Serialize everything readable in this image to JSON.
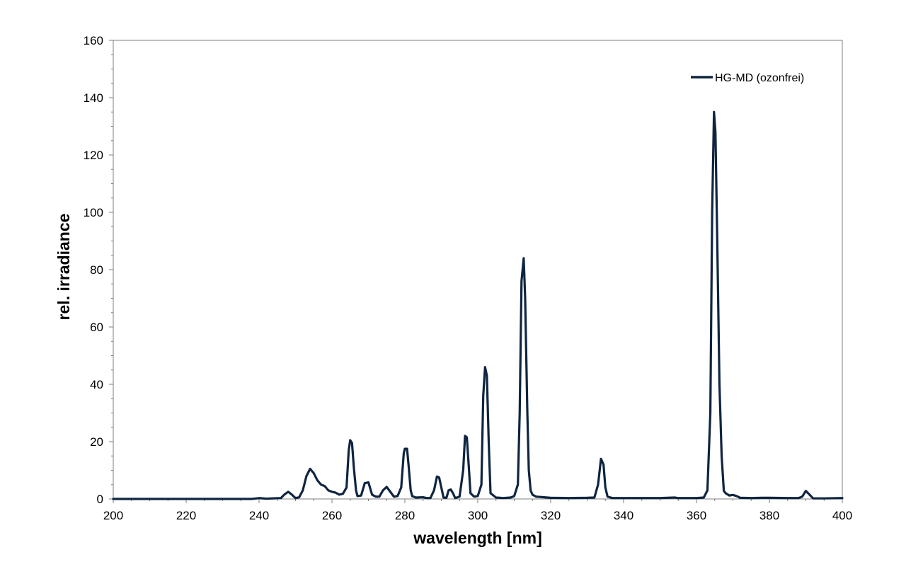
{
  "chart_data": {
    "type": "line",
    "title": "",
    "xlabel": "wavelength [nm]",
    "ylabel": "rel. irradiance",
    "xlim": [
      200,
      400
    ],
    "ylim": [
      0,
      160
    ],
    "x_ticks": [
      "200",
      "220",
      "240",
      "260",
      "280",
      "300",
      "320",
      "340",
      "360",
      "380",
      "400"
    ],
    "y_ticks": [
      "0",
      "20",
      "40",
      "60",
      "80",
      "100",
      "120",
      "140",
      "160"
    ],
    "grid": false,
    "legend_position": "top-right",
    "line_color": "#0f2540",
    "series": [
      {
        "name": "HG-MD (ozonfrei)",
        "points": [
          [
            200,
            0
          ],
          [
            210,
            0
          ],
          [
            220,
            0
          ],
          [
            230,
            0
          ],
          [
            238,
            0
          ],
          [
            240,
            0.3
          ],
          [
            242,
            0.1
          ],
          [
            246,
            0.3
          ],
          [
            247,
            1.6
          ],
          [
            248,
            2.5
          ],
          [
            249,
            1.5
          ],
          [
            250,
            0.3
          ],
          [
            251,
            0.6
          ],
          [
            252,
            3
          ],
          [
            253,
            8
          ],
          [
            254,
            10.5
          ],
          [
            255,
            9
          ],
          [
            256,
            6.5
          ],
          [
            257,
            5
          ],
          [
            258,
            4.5
          ],
          [
            259,
            3
          ],
          [
            260,
            2.5
          ],
          [
            261,
            2.2
          ],
          [
            262,
            1.5
          ],
          [
            263,
            1.8
          ],
          [
            264,
            4
          ],
          [
            264.6,
            17
          ],
          [
            265,
            20.5
          ],
          [
            265.5,
            19.5
          ],
          [
            266,
            11
          ],
          [
            266.6,
            3
          ],
          [
            267,
            1
          ],
          [
            268,
            1.2
          ],
          [
            269,
            5.5
          ],
          [
            270,
            5.8
          ],
          [
            271,
            1.5
          ],
          [
            272,
            0.8
          ],
          [
            273,
            0.8
          ],
          [
            274,
            3
          ],
          [
            275,
            4.2
          ],
          [
            276,
            2.5
          ],
          [
            277,
            0.8
          ],
          [
            278,
            1
          ],
          [
            279,
            4
          ],
          [
            279.7,
            16
          ],
          [
            280,
            17.5
          ],
          [
            280.6,
            17.5
          ],
          [
            281,
            12
          ],
          [
            281.6,
            3
          ],
          [
            282,
            1
          ],
          [
            283,
            0.5
          ],
          [
            285,
            0.6
          ],
          [
            286,
            0.3
          ],
          [
            287,
            0.3
          ],
          [
            288,
            3
          ],
          [
            288.8,
            7.8
          ],
          [
            289.4,
            7.5
          ],
          [
            290,
            4
          ],
          [
            290.6,
            0.5
          ],
          [
            291.4,
            0.4
          ],
          [
            292,
            3
          ],
          [
            292.6,
            3.3
          ],
          [
            293.2,
            2
          ],
          [
            293.8,
            0.3
          ],
          [
            295,
            0.8
          ],
          [
            296,
            10
          ],
          [
            296.5,
            22
          ],
          [
            297,
            21.5
          ],
          [
            297.6,
            10
          ],
          [
            298,
            2
          ],
          [
            299,
            0.8
          ],
          [
            300,
            1
          ],
          [
            301,
            5
          ],
          [
            301.5,
            36
          ],
          [
            302,
            46
          ],
          [
            302.5,
            43
          ],
          [
            303,
            20
          ],
          [
            303.5,
            2
          ],
          [
            305,
            0.5
          ],
          [
            307,
            0.3
          ],
          [
            309,
            0.5
          ],
          [
            310,
            1
          ],
          [
            311,
            5
          ],
          [
            311.5,
            30
          ],
          [
            312,
            76
          ],
          [
            312.6,
            84
          ],
          [
            313,
            70
          ],
          [
            313.6,
            30
          ],
          [
            314,
            10
          ],
          [
            314.5,
            3
          ],
          [
            315,
            1.5
          ],
          [
            316,
            0.8
          ],
          [
            320,
            0.4
          ],
          [
            325,
            0.3
          ],
          [
            330,
            0.4
          ],
          [
            332,
            0.5
          ],
          [
            333,
            5
          ],
          [
            333.8,
            14
          ],
          [
            334.5,
            12
          ],
          [
            335,
            4
          ],
          [
            335.6,
            0.8
          ],
          [
            337,
            0.3
          ],
          [
            340,
            0.3
          ],
          [
            345,
            0.3
          ],
          [
            350,
            0.3
          ],
          [
            354,
            0.5
          ],
          [
            355,
            0.3
          ],
          [
            360,
            0.3
          ],
          [
            362,
            0.5
          ],
          [
            363,
            3
          ],
          [
            363.8,
            30
          ],
          [
            364.3,
            100
          ],
          [
            364.8,
            135
          ],
          [
            365.2,
            128
          ],
          [
            365.7,
            90
          ],
          [
            366.3,
            40
          ],
          [
            366.9,
            15
          ],
          [
            367.5,
            2.8
          ],
          [
            368,
            2
          ],
          [
            369,
            1.2
          ],
          [
            370,
            1.4
          ],
          [
            371,
            1
          ],
          [
            372,
            0.4
          ],
          [
            375,
            0.3
          ],
          [
            378,
            0.4
          ],
          [
            380,
            0.4
          ],
          [
            385,
            0.3
          ],
          [
            388,
            0.3
          ],
          [
            389,
            0.8
          ],
          [
            390,
            2.8
          ],
          [
            391,
            1.5
          ],
          [
            392,
            0.2
          ],
          [
            395,
            0.2
          ],
          [
            400,
            0.3
          ]
        ]
      }
    ]
  }
}
